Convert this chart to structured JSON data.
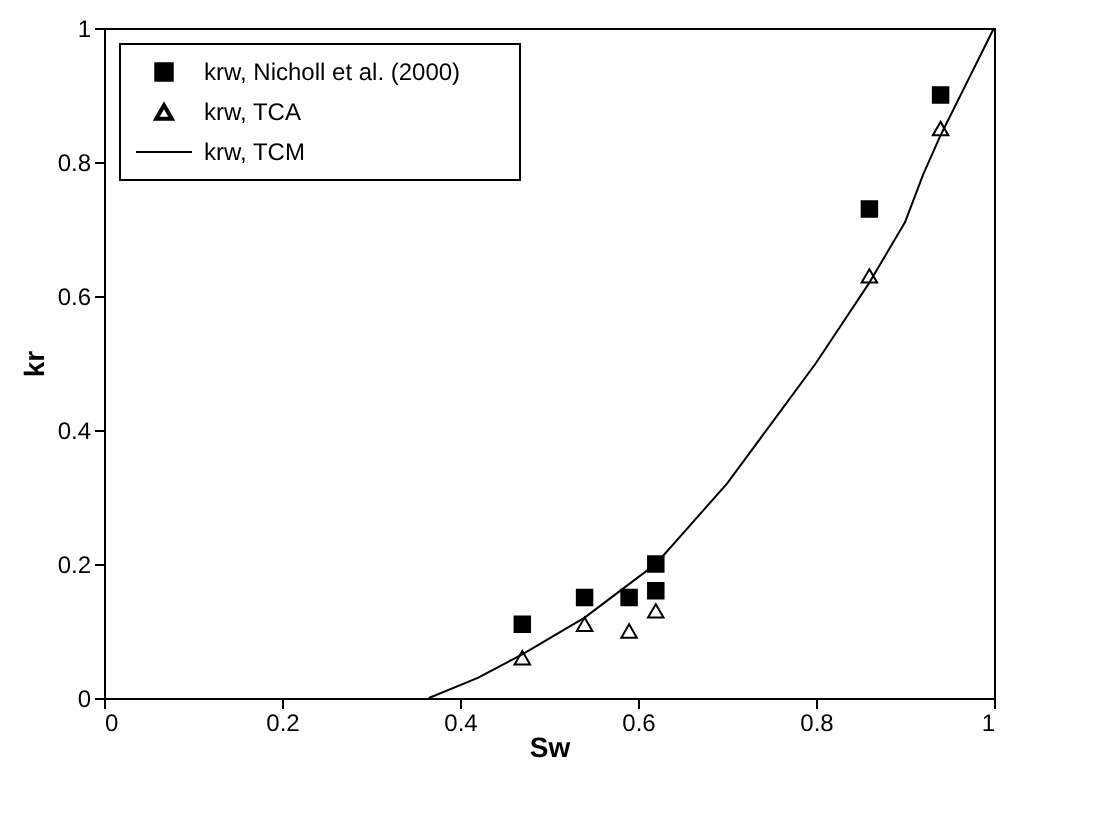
{
  "chart_data": {
    "type": "scatter",
    "xlabel": "Sw",
    "ylabel": "kr",
    "xlim": [
      0,
      1
    ],
    "ylim": [
      0,
      1
    ],
    "xticks": [
      0,
      0.2,
      0.4,
      0.6,
      0.8,
      1
    ],
    "yticks": [
      0,
      0.2,
      0.4,
      0.6,
      0.8,
      1
    ],
    "grid": false,
    "legend": "top left",
    "series": [
      {
        "name": "krw, Nicholl et al. (2000)",
        "marker": "square",
        "color": "#000000",
        "x": [
          0.47,
          0.54,
          0.59,
          0.62,
          0.62,
          0.86,
          0.94
        ],
        "values": [
          0.11,
          0.15,
          0.15,
          0.2,
          0.16,
          0.73,
          0.9
        ]
      },
      {
        "name": "krw, TCA",
        "marker": "triangle",
        "color": "#000000",
        "x": [
          0.47,
          0.54,
          0.59,
          0.62,
          0.86,
          0.94
        ],
        "values": [
          0.06,
          0.11,
          0.1,
          0.13,
          0.63,
          0.85
        ]
      },
      {
        "name": "krw, TCM",
        "type": "line",
        "marker": "none",
        "line_style": "solid",
        "color": "#000000",
        "x": [
          0.365,
          0.42,
          0.47,
          0.54,
          0.6,
          0.62,
          0.66,
          0.7,
          0.75,
          0.8,
          0.86,
          0.9,
          0.92,
          0.94,
          0.97,
          1.0
        ],
        "values": [
          0,
          0.03,
          0.065,
          0.12,
          0.18,
          0.2,
          0.26,
          0.32,
          0.41,
          0.5,
          0.62,
          0.71,
          0.78,
          0.84,
          0.92,
          1.0
        ]
      }
    ]
  }
}
